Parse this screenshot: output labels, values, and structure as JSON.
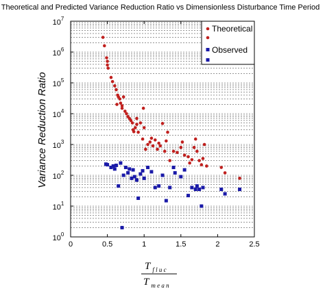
{
  "chart_data": {
    "type": "scatter",
    "title": "Theoretical and Predicted Variance Reduction Ratio vs Dimensionless Disturbance Time Period",
    "ylabel": "Variance Reduction Ratio",
    "xlabel": {
      "numerator_main": "T",
      "numerator_sub": "f l u c",
      "denominator_main": "T",
      "denominator_sub": "m e a n"
    },
    "xlim": [
      0,
      2.5
    ],
    "ylim": [
      1,
      10000000
    ],
    "yscale": "log",
    "grid": "y-major-minor-dashed",
    "legend_position": "top-right",
    "x_ticks": [
      {
        "value": 0,
        "label": "0"
      },
      {
        "value": 0.5,
        "label": "0.5"
      },
      {
        "value": 1,
        "label": "1"
      },
      {
        "value": 1.5,
        "label": "1.5"
      },
      {
        "value": 2,
        "label": "2"
      },
      {
        "value": 2.5,
        "label": "2.5"
      }
    ],
    "y_ticks": [
      {
        "value": 1,
        "base": "10",
        "exp": "0"
      },
      {
        "value": 10,
        "base": "10",
        "exp": "1"
      },
      {
        "value": 100,
        "base": "10",
        "exp": "2"
      },
      {
        "value": 1000,
        "base": "10",
        "exp": "3"
      },
      {
        "value": 10000,
        "base": "10",
        "exp": "4"
      },
      {
        "value": 100000,
        "base": "10",
        "exp": "5"
      },
      {
        "value": 1000000,
        "base": "10",
        "exp": "6"
      },
      {
        "value": 10000000,
        "base": "10",
        "exp": "7"
      }
    ],
    "series": [
      {
        "name": "Theoretical",
        "marker": "circle",
        "color": "#c0201e",
        "points": [
          [
            0.44,
            3000000
          ],
          [
            0.46,
            1600000
          ],
          [
            0.49,
            650000
          ],
          [
            0.5,
            500000
          ],
          [
            0.5,
            380000
          ],
          [
            0.51,
            300000
          ],
          [
            0.55,
            150000
          ],
          [
            0.57,
            110000
          ],
          [
            0.6,
            80000
          ],
          [
            0.62,
            60000
          ],
          [
            0.64,
            40000
          ],
          [
            0.65,
            35000
          ],
          [
            0.63,
            20000
          ],
          [
            0.67,
            30000
          ],
          [
            0.68,
            22000
          ],
          [
            0.7,
            18000
          ],
          [
            0.7,
            15000
          ],
          [
            0.72,
            35000
          ],
          [
            0.74,
            12000
          ],
          [
            0.76,
            10000
          ],
          [
            0.78,
            8000
          ],
          [
            0.8,
            7000
          ],
          [
            0.82,
            6000
          ],
          [
            0.84,
            5000
          ],
          [
            0.85,
            3000
          ],
          [
            0.86,
            2600
          ],
          [
            0.88,
            3500
          ],
          [
            0.9,
            7000
          ],
          [
            0.9,
            4500
          ],
          [
            0.92,
            2500
          ],
          [
            0.95,
            5000
          ],
          [
            0.98,
            1500
          ],
          [
            0.99,
            15000
          ],
          [
            1.0,
            3500
          ],
          [
            1.02,
            700
          ],
          [
            1.05,
            1000
          ],
          [
            1.08,
            1200
          ],
          [
            1.1,
            1600
          ],
          [
            1.12,
            900
          ],
          [
            1.15,
            1400
          ],
          [
            1.18,
            700
          ],
          [
            1.2,
            1100
          ],
          [
            1.22,
            900
          ],
          [
            1.25,
            4800
          ],
          [
            1.28,
            600
          ],
          [
            1.3,
            1300
          ],
          [
            1.32,
            2500
          ],
          [
            1.35,
            300
          ],
          [
            1.4,
            600
          ],
          [
            1.45,
            550
          ],
          [
            1.5,
            800
          ],
          [
            1.52,
            1200
          ],
          [
            1.55,
            450
          ],
          [
            1.6,
            400
          ],
          [
            1.62,
            250
          ],
          [
            1.65,
            320
          ],
          [
            1.68,
            800
          ],
          [
            1.7,
            1500
          ],
          [
            1.72,
            600
          ],
          [
            1.75,
            300
          ],
          [
            1.78,
            220
          ],
          [
            1.8,
            350
          ],
          [
            1.82,
            1000
          ],
          [
            1.85,
            200
          ],
          [
            2.05,
            180
          ],
          [
            2.1,
            120
          ],
          [
            2.3,
            80
          ]
        ]
      },
      {
        "name": "Observed",
        "marker": "square",
        "color": "#1a1aa8",
        "points": [
          [
            0.48,
            230
          ],
          [
            0.5,
            220
          ],
          [
            0.55,
            180
          ],
          [
            0.58,
            200
          ],
          [
            0.6,
            160
          ],
          [
            0.62,
            210
          ],
          [
            0.65,
            45
          ],
          [
            0.68,
            250
          ],
          [
            0.7,
            2
          ],
          [
            0.72,
            100
          ],
          [
            0.75,
            180
          ],
          [
            0.78,
            120
          ],
          [
            0.8,
            160
          ],
          [
            0.83,
            80
          ],
          [
            0.85,
            150
          ],
          [
            0.87,
            90
          ],
          [
            0.9,
            70
          ],
          [
            0.92,
            18
          ],
          [
            0.95,
            110
          ],
          [
            0.98,
            140
          ],
          [
            1.0,
            80
          ],
          [
            1.05,
            180
          ],
          [
            1.1,
            130
          ],
          [
            1.15,
            40
          ],
          [
            1.2,
            45
          ],
          [
            1.25,
            100
          ],
          [
            1.3,
            15
          ],
          [
            1.35,
            40
          ],
          [
            1.4,
            180
          ],
          [
            1.42,
            120
          ],
          [
            1.5,
            90
          ],
          [
            1.55,
            150
          ],
          [
            1.6,
            22
          ],
          [
            1.65,
            40
          ],
          [
            1.7,
            35
          ],
          [
            1.72,
            45
          ],
          [
            1.75,
            35
          ],
          [
            1.78,
            10
          ],
          [
            1.8,
            40
          ],
          [
            2.05,
            35
          ],
          [
            2.1,
            25
          ],
          [
            2.3,
            35
          ]
        ]
      }
    ]
  }
}
